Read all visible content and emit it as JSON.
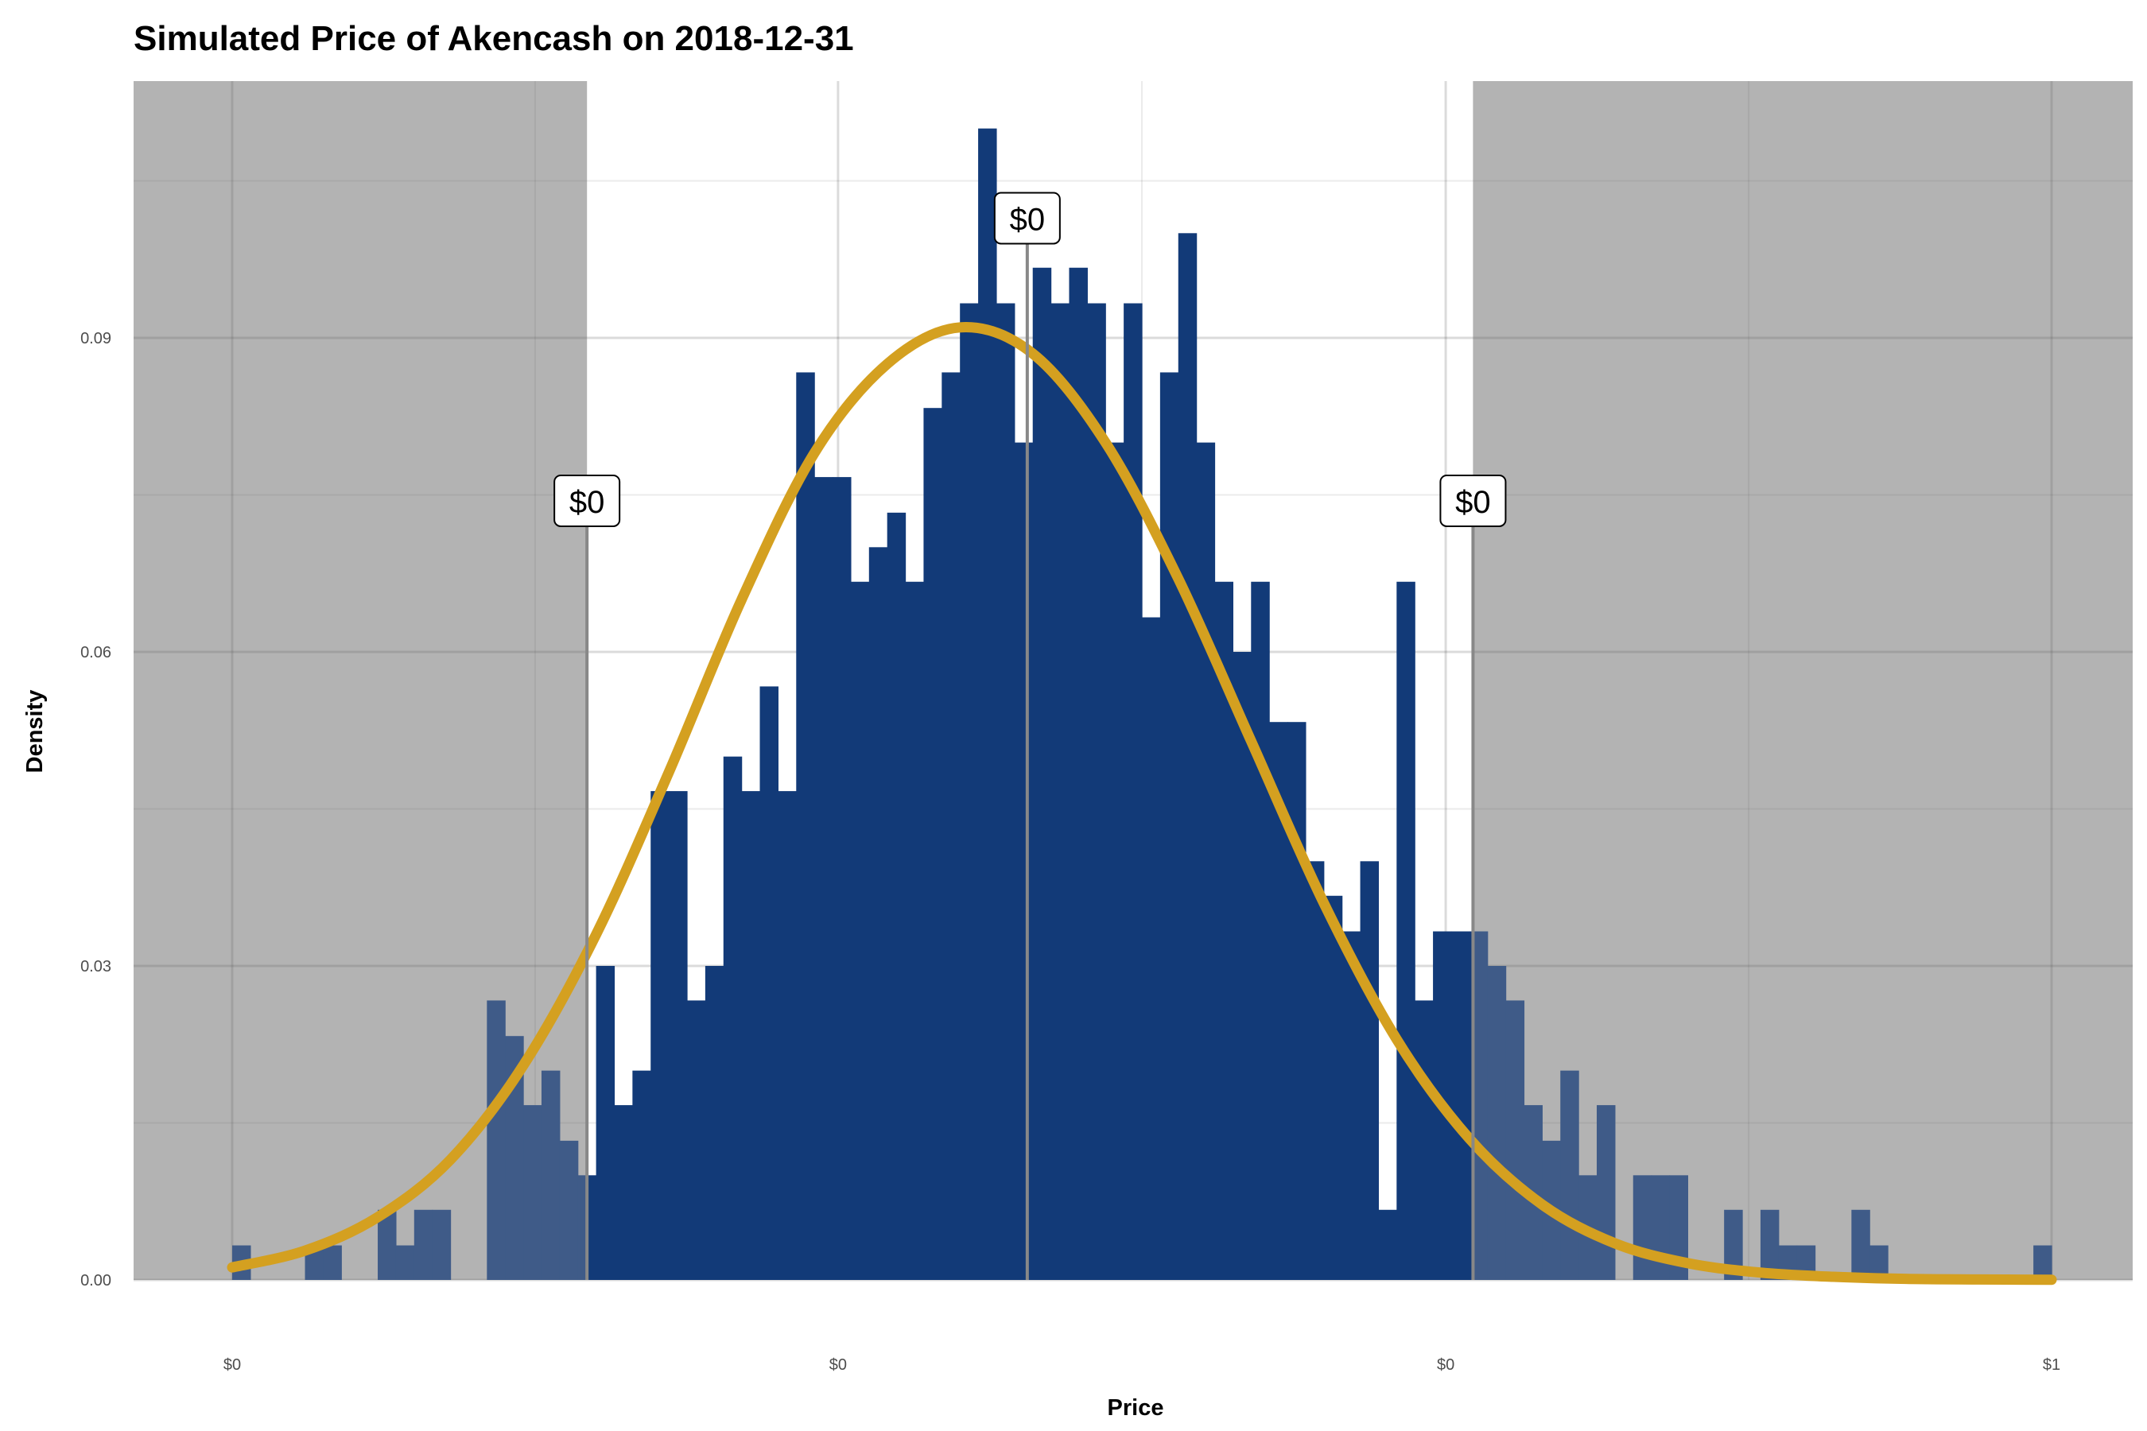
{
  "chart_data": {
    "type": "histogram",
    "title": "Simulated Price of Akencash on 2018-12-31",
    "xlabel": "Price",
    "ylabel": "Density",
    "xlim": [
      0,
      1
    ],
    "ylim": [
      0,
      0.11
    ],
    "x_ticks": [
      {
        "value": 0.0,
        "label": "$0"
      },
      {
        "value": 0.333,
        "label": "$0"
      },
      {
        "value": 0.667,
        "label": "$0"
      },
      {
        "value": 1.0,
        "label": "$1"
      }
    ],
    "y_ticks": [
      {
        "value": 0.0,
        "label": "0.00"
      },
      {
        "value": 0.03,
        "label": "0.03"
      },
      {
        "value": 0.06,
        "label": "0.06"
      },
      {
        "value": 0.09,
        "label": "0.09"
      }
    ],
    "grid": true,
    "bar_color": "#123a78",
    "curve_color": "#d4a020",
    "shade_color": "#b3b3b3",
    "shaded_regions": [
      [
        0.0,
        0.195
      ],
      [
        0.682,
        1.0
      ]
    ],
    "series": {
      "type": "bar",
      "bin_width": 0.01,
      "bin_starts": [
        0.0,
        0.01,
        0.02,
        0.03,
        0.04,
        0.05,
        0.06,
        0.07,
        0.08,
        0.09,
        0.1,
        0.11,
        0.12,
        0.13,
        0.14,
        0.15,
        0.16,
        0.17,
        0.18,
        0.19,
        0.2,
        0.21,
        0.22,
        0.23,
        0.24,
        0.25,
        0.26,
        0.27,
        0.28,
        0.29,
        0.3,
        0.31,
        0.32,
        0.33,
        0.34,
        0.35,
        0.36,
        0.37,
        0.38,
        0.39,
        0.4,
        0.41,
        0.42,
        0.43,
        0.44,
        0.45,
        0.46,
        0.47,
        0.48,
        0.49,
        0.5,
        0.51,
        0.52,
        0.53,
        0.54,
        0.55,
        0.56,
        0.57,
        0.58,
        0.59,
        0.6,
        0.61,
        0.62,
        0.63,
        0.64,
        0.65,
        0.66,
        0.67,
        0.68,
        0.69,
        0.7,
        0.71,
        0.72,
        0.73,
        0.74,
        0.75,
        0.76,
        0.77,
        0.78,
        0.79,
        0.8,
        0.81,
        0.82,
        0.83,
        0.84,
        0.85,
        0.86,
        0.87,
        0.88,
        0.89,
        0.9,
        0.91,
        0.92,
        0.93,
        0.94,
        0.95,
        0.96,
        0.97,
        0.98,
        0.99
      ],
      "values": [
        0.0033,
        0.0,
        0.0,
        0.0,
        0.0033,
        0.0033,
        0.0,
        0.0,
        0.0067,
        0.0033,
        0.0067,
        0.0067,
        0.0,
        0.0,
        0.0267,
        0.0233,
        0.0167,
        0.02,
        0.0133,
        0.01,
        0.03,
        0.0167,
        0.02,
        0.0467,
        0.0467,
        0.0267,
        0.03,
        0.05,
        0.0467,
        0.0567,
        0.0467,
        0.0867,
        0.0767,
        0.0767,
        0.0667,
        0.07,
        0.0733,
        0.0667,
        0.0833,
        0.0867,
        0.0933,
        0.11,
        0.0933,
        0.08,
        0.0967,
        0.0933,
        0.0967,
        0.0933,
        0.08,
        0.0933,
        0.0633,
        0.0867,
        0.1,
        0.08,
        0.0667,
        0.06,
        0.0667,
        0.0533,
        0.0533,
        0.04,
        0.0367,
        0.0333,
        0.04,
        0.0067,
        0.0667,
        0.0267,
        0.0333,
        0.0333,
        0.0333,
        0.03,
        0.0267,
        0.0167,
        0.0133,
        0.02,
        0.01,
        0.0167,
        0.0,
        0.01,
        0.01,
        0.01,
        0.0,
        0.0,
        0.0067,
        0.0,
        0.0067,
        0.0033,
        0.0033,
        0.0,
        0.0,
        0.0067,
        0.0033,
        0.0,
        0.0,
        0.0,
        0.0,
        0.0,
        0.0,
        0.0,
        0.0,
        0.0033
      ]
    },
    "curve": {
      "type": "line",
      "x": [
        0.0,
        0.04,
        0.08,
        0.12,
        0.16,
        0.2,
        0.24,
        0.28,
        0.32,
        0.36,
        0.4,
        0.44,
        0.48,
        0.52,
        0.56,
        0.6,
        0.64,
        0.68,
        0.72,
        0.76,
        0.8,
        0.84,
        0.88,
        0.92,
        0.96,
        1.0
      ],
      "y": [
        0.0012,
        0.0028,
        0.006,
        0.0115,
        0.0205,
        0.033,
        0.0485,
        0.065,
        0.079,
        0.0875,
        0.091,
        0.0885,
        0.08,
        0.067,
        0.0515,
        0.036,
        0.023,
        0.0135,
        0.0072,
        0.0035,
        0.0016,
        0.0007,
        0.0003,
        0.0001,
        5e-05,
        2e-05
      ]
    },
    "annotations": [
      {
        "x": 0.195,
        "y": 0.072,
        "label": "$0"
      },
      {
        "x": 0.437,
        "y": 0.099,
        "label": "$0"
      },
      {
        "x": 0.682,
        "y": 0.072,
        "label": "$0"
      }
    ]
  }
}
